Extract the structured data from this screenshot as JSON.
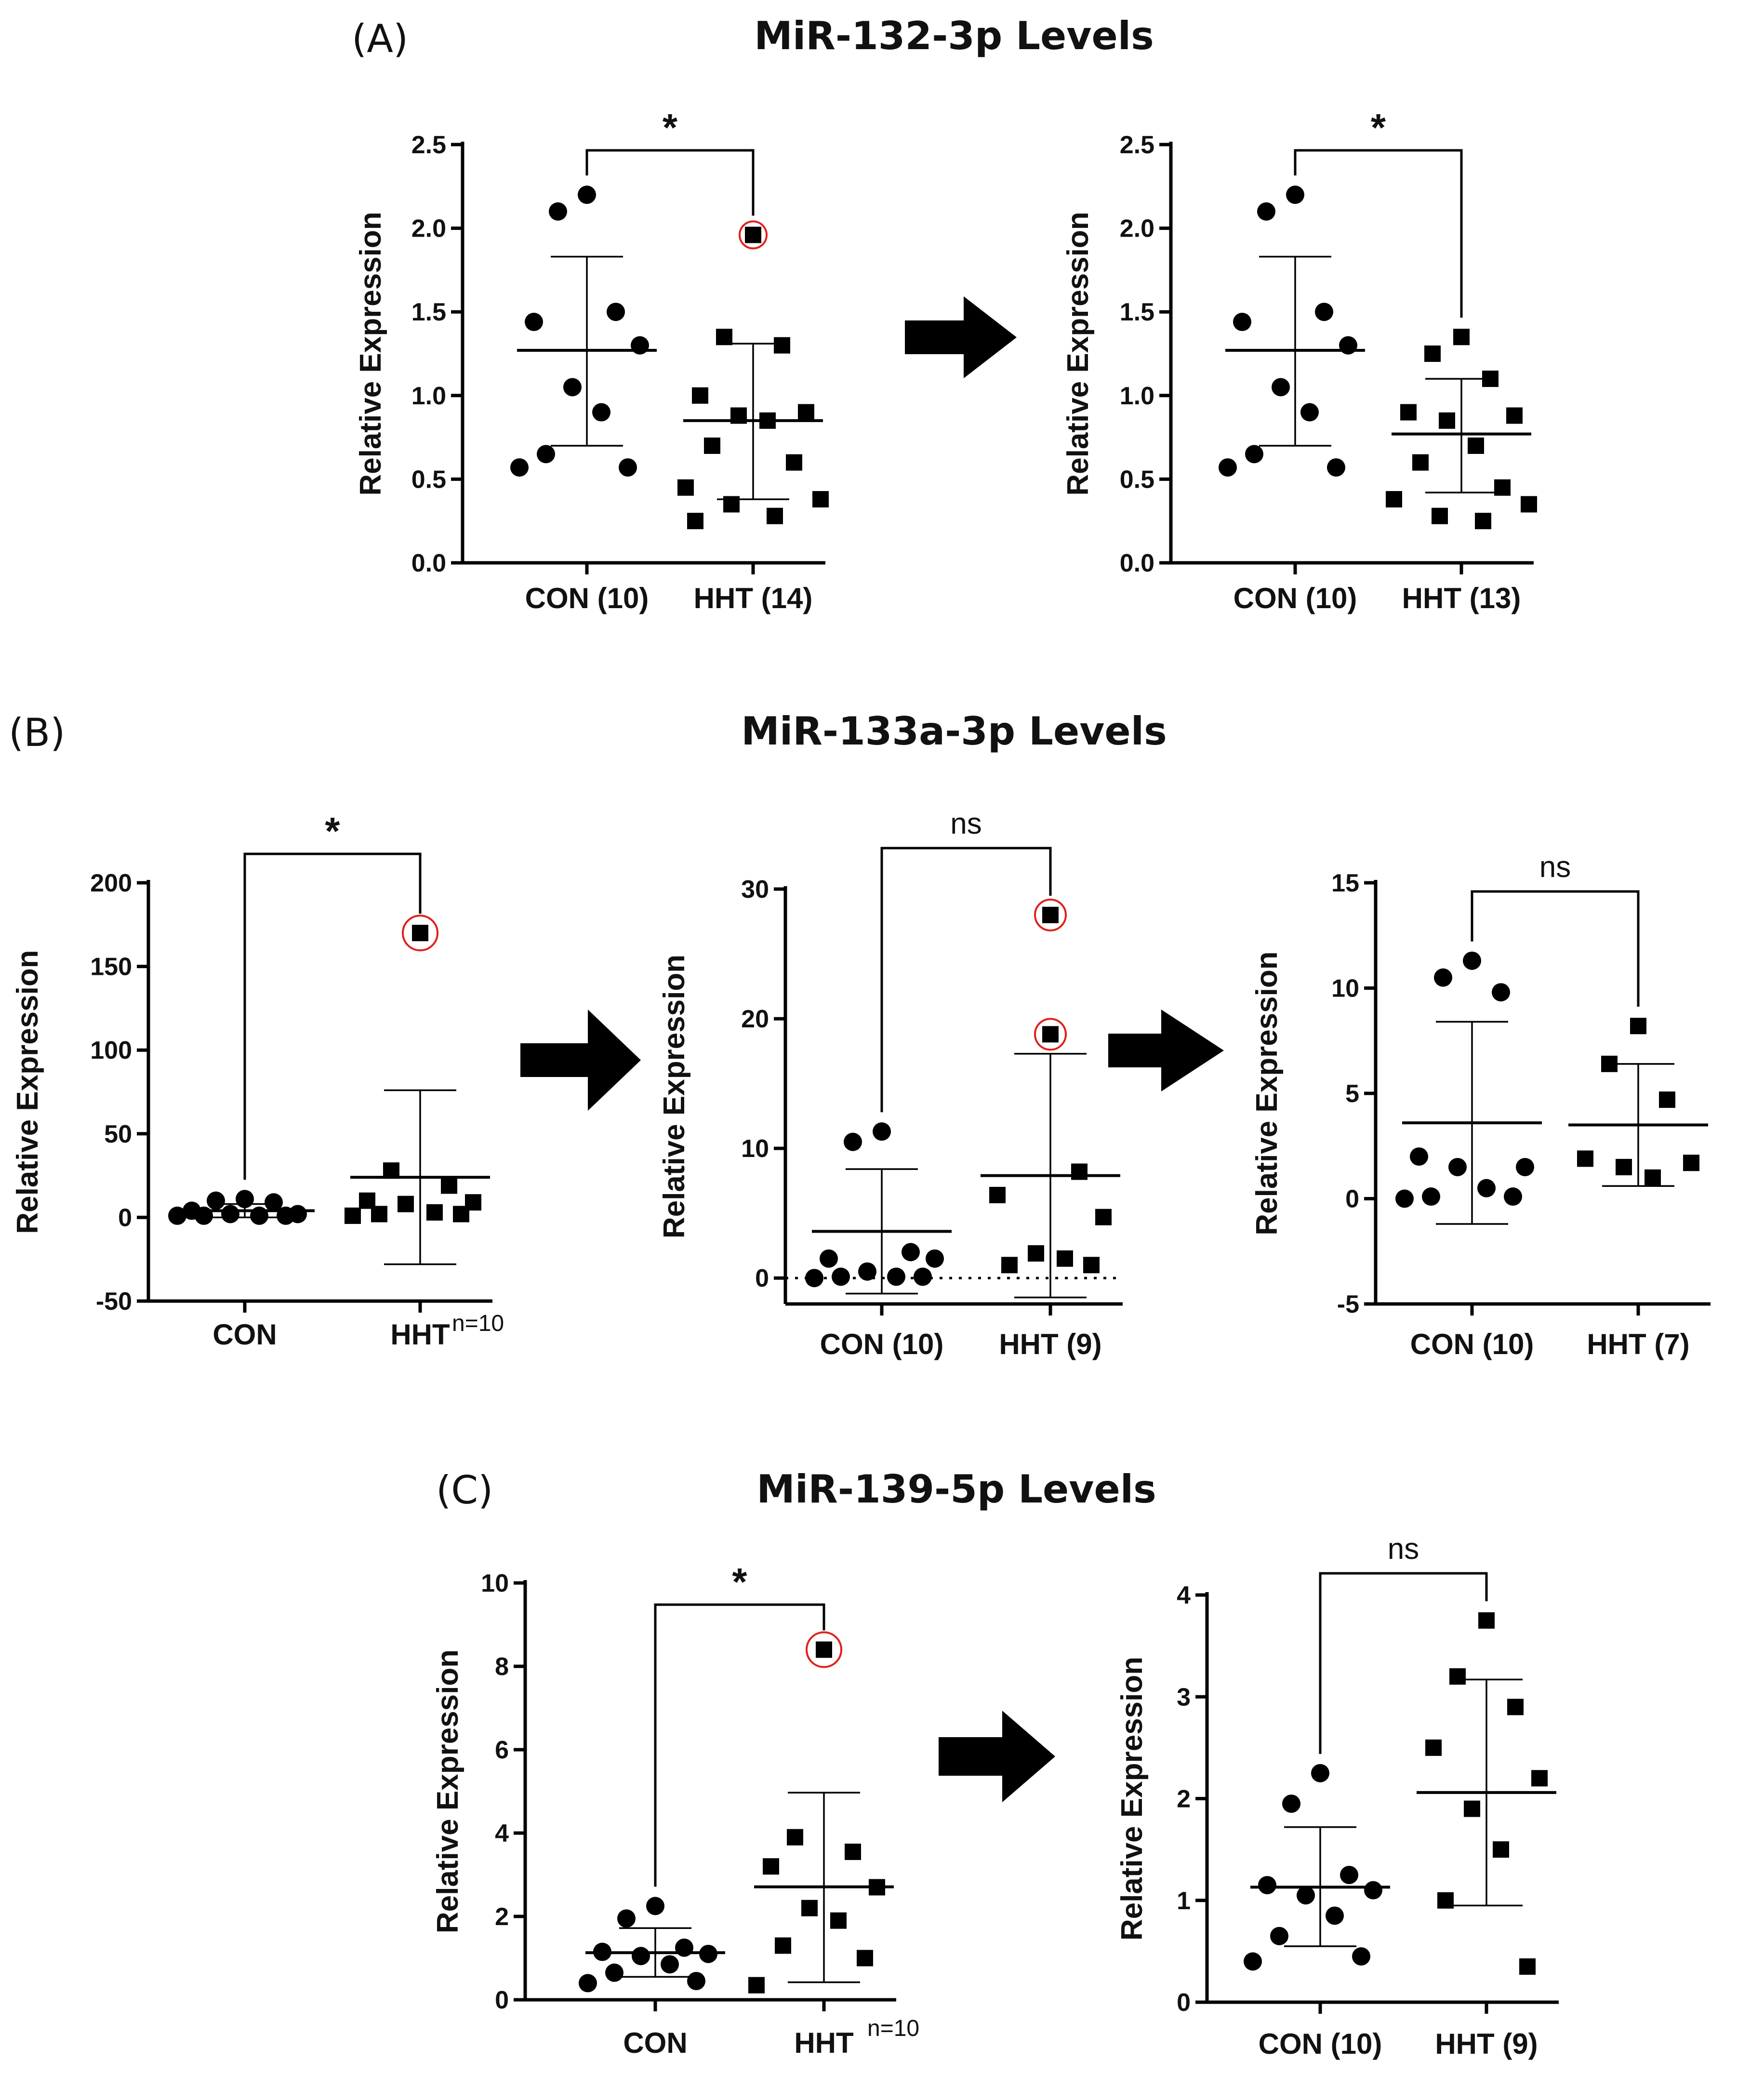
{
  "panels": [
    {
      "id": "A",
      "label": "(A)",
      "title": "MiR-132-3p Levels"
    },
    {
      "id": "B",
      "label": "(B)",
      "title": "MiR-133a-3p Levels"
    },
    {
      "id": "C",
      "label": "(C)",
      "title": "MiR-139-5p Levels"
    }
  ],
  "chart_data": [
    {
      "id": "A1",
      "panel": "A",
      "type": "scatter",
      "ylabel": "Relative Expression",
      "ylim": [
        0,
        2.5
      ],
      "yticks": [
        0.0,
        0.5,
        1.0,
        1.5,
        2.0,
        2.5
      ],
      "ytick_labels": [
        "0.0",
        "0.5",
        "1.0",
        "1.5",
        "2.0",
        "2.5"
      ],
      "categories": [
        "CON (10)",
        "HHT (14)"
      ],
      "significance": "*",
      "series": [
        {
          "name": "CON (10)",
          "marker": "circle",
          "mean": 1.27,
          "sd_low": 0.7,
          "sd_high": 1.83,
          "values": [
            2.1,
            2.2,
            1.44,
            1.5,
            1.3,
            1.05,
            0.9,
            0.65,
            0.57,
            0.57
          ]
        },
        {
          "name": "HHT (14)",
          "marker": "square",
          "mean": 0.85,
          "sd_low": 0.38,
          "sd_high": 1.31,
          "values": [
            1.96,
            1.35,
            1.3,
            1.0,
            0.9,
            0.88,
            0.85,
            0.7,
            0.6,
            0.45,
            0.38,
            0.35,
            0.25,
            0.28
          ],
          "outliers_circled": [
            1.96
          ]
        }
      ]
    },
    {
      "id": "A2",
      "panel": "A",
      "type": "scatter",
      "ylabel": "Relative Expression",
      "ylim": [
        0,
        2.5
      ],
      "yticks": [
        0.0,
        0.5,
        1.0,
        1.5,
        2.0,
        2.5
      ],
      "ytick_labels": [
        "0.0",
        "0.5",
        "1.0",
        "1.5",
        "2.0",
        "2.5"
      ],
      "categories": [
        "CON (10)",
        "HHT (13)"
      ],
      "significance": "*",
      "series": [
        {
          "name": "CON (10)",
          "marker": "circle",
          "mean": 1.27,
          "sd_low": 0.7,
          "sd_high": 1.83,
          "values": [
            2.1,
            2.2,
            1.44,
            1.5,
            1.3,
            1.05,
            0.9,
            0.65,
            0.57,
            0.57
          ]
        },
        {
          "name": "HHT (13)",
          "marker": "square",
          "mean": 0.77,
          "sd_low": 0.42,
          "sd_high": 1.1,
          "values": [
            1.35,
            1.25,
            1.1,
            0.9,
            0.88,
            0.85,
            0.7,
            0.6,
            0.45,
            0.38,
            0.35,
            0.25,
            0.28
          ]
        }
      ]
    },
    {
      "id": "B1",
      "panel": "B",
      "type": "scatter",
      "ylabel": "Relative Expression",
      "ylim": [
        -50,
        200
      ],
      "yticks": [
        -50,
        0,
        50,
        100,
        150,
        200
      ],
      "ytick_labels": [
        "-50",
        "0",
        "50",
        "100",
        "150",
        "200"
      ],
      "categories": [
        "CON",
        "HHT"
      ],
      "note": "n=10",
      "significance": "*",
      "series": [
        {
          "name": "CON",
          "marker": "circle",
          "mean": 4,
          "sd_low": 0,
          "sd_high": 8,
          "values": [
            10,
            9,
            11,
            4,
            2,
            1,
            1,
            2,
            1,
            1
          ]
        },
        {
          "name": "HHT",
          "marker": "square",
          "mean": 24,
          "sd_low": -28,
          "sd_high": 76,
          "values": [
            170,
            28,
            19,
            10,
            9,
            8,
            2,
            1,
            3,
            2
          ],
          "outliers_circled": [
            170
          ]
        }
      ]
    },
    {
      "id": "B2",
      "panel": "B",
      "type": "scatter",
      "ylabel": "Relative Expression",
      "ylim": [
        -2,
        30
      ],
      "yticks": [
        0,
        10,
        20,
        30
      ],
      "ytick_labels": [
        "0",
        "10",
        "20",
        "30"
      ],
      "categories": [
        "CON (10)",
        "HHT (9)"
      ],
      "significance": "ns",
      "zero_line": true,
      "series": [
        {
          "name": "CON (10)",
          "marker": "circle",
          "mean": 3.6,
          "sd_low": -1.2,
          "sd_high": 8.4,
          "values": [
            11.3,
            10.5,
            2.0,
            1.5,
            1.5,
            0.5,
            0.1,
            0.1,
            0.0,
            0.1
          ]
        },
        {
          "name": "HHT (9)",
          "marker": "square",
          "mean": 7.9,
          "sd_low": -1.5,
          "sd_high": 17.3,
          "values": [
            28.0,
            18.8,
            8.2,
            6.4,
            4.7,
            1.9,
            1.5,
            1.0,
            1.0
          ],
          "outliers_circled": [
            28.0,
            18.8
          ]
        }
      ]
    },
    {
      "id": "B3",
      "panel": "B",
      "type": "scatter",
      "ylabel": "Relative Expression",
      "ylim": [
        -5,
        15
      ],
      "yticks": [
        -5,
        0,
        5,
        10,
        15
      ],
      "ytick_labels": [
        "-5",
        "0",
        "5",
        "10",
        "15"
      ],
      "categories": [
        "CON (10)",
        "HHT (7)"
      ],
      "significance": "ns",
      "series": [
        {
          "name": "CON (10)",
          "marker": "circle",
          "mean": 3.6,
          "sd_low": -1.2,
          "sd_high": 8.4,
          "values": [
            11.3,
            10.5,
            9.8,
            2.0,
            1.5,
            1.5,
            0.5,
            0.1,
            0.1,
            0.0
          ]
        },
        {
          "name": "HHT (7)",
          "marker": "square",
          "mean": 3.5,
          "sd_low": 0.6,
          "sd_high": 6.4,
          "values": [
            8.2,
            6.4,
            4.7,
            1.9,
            1.5,
            1.0,
            1.7
          ]
        }
      ]
    },
    {
      "id": "C1",
      "panel": "C",
      "type": "scatter",
      "ylabel": "Relative Expression",
      "ylim": [
        0,
        10
      ],
      "yticks": [
        0,
        2,
        4,
        6,
        8,
        10
      ],
      "ytick_labels": [
        "0",
        "2",
        "4",
        "6",
        "8",
        "10"
      ],
      "categories": [
        "CON",
        "HHT"
      ],
      "note": "n=10",
      "significance": "*",
      "series": [
        {
          "name": "CON",
          "marker": "circle",
          "mean": 1.13,
          "sd_low": 0.55,
          "sd_high": 1.72,
          "values": [
            2.25,
            1.95,
            1.25,
            1.15,
            1.1,
            1.05,
            0.85,
            0.65,
            0.45,
            0.4
          ]
        },
        {
          "name": "HHT",
          "marker": "square",
          "mean": 2.71,
          "sd_low": 0.42,
          "sd_high": 4.97,
          "values": [
            8.4,
            3.9,
            3.55,
            3.2,
            2.7,
            2.2,
            1.9,
            1.3,
            1.0,
            0.35
          ],
          "outliers_circled": [
            8.4
          ]
        }
      ]
    },
    {
      "id": "C2",
      "panel": "C",
      "type": "scatter",
      "ylabel": "Relative Expression",
      "ylim": [
        0,
        4
      ],
      "yticks": [
        0,
        1,
        2,
        3,
        4
      ],
      "ytick_labels": [
        "0",
        "1",
        "2",
        "3",
        "4"
      ],
      "categories": [
        "CON (10)",
        "HHT (9)"
      ],
      "significance": "ns",
      "series": [
        {
          "name": "CON (10)",
          "marker": "circle",
          "mean": 1.13,
          "sd_low": 0.55,
          "sd_high": 1.72,
          "values": [
            2.25,
            1.95,
            1.25,
            1.15,
            1.1,
            1.05,
            0.85,
            0.65,
            0.45,
            0.4
          ]
        },
        {
          "name": "HHT (9)",
          "marker": "square",
          "mean": 2.06,
          "sd_low": 0.95,
          "sd_high": 3.17,
          "values": [
            3.75,
            3.2,
            2.9,
            2.5,
            2.2,
            1.9,
            1.5,
            1.0,
            0.35
          ]
        }
      ]
    }
  ]
}
